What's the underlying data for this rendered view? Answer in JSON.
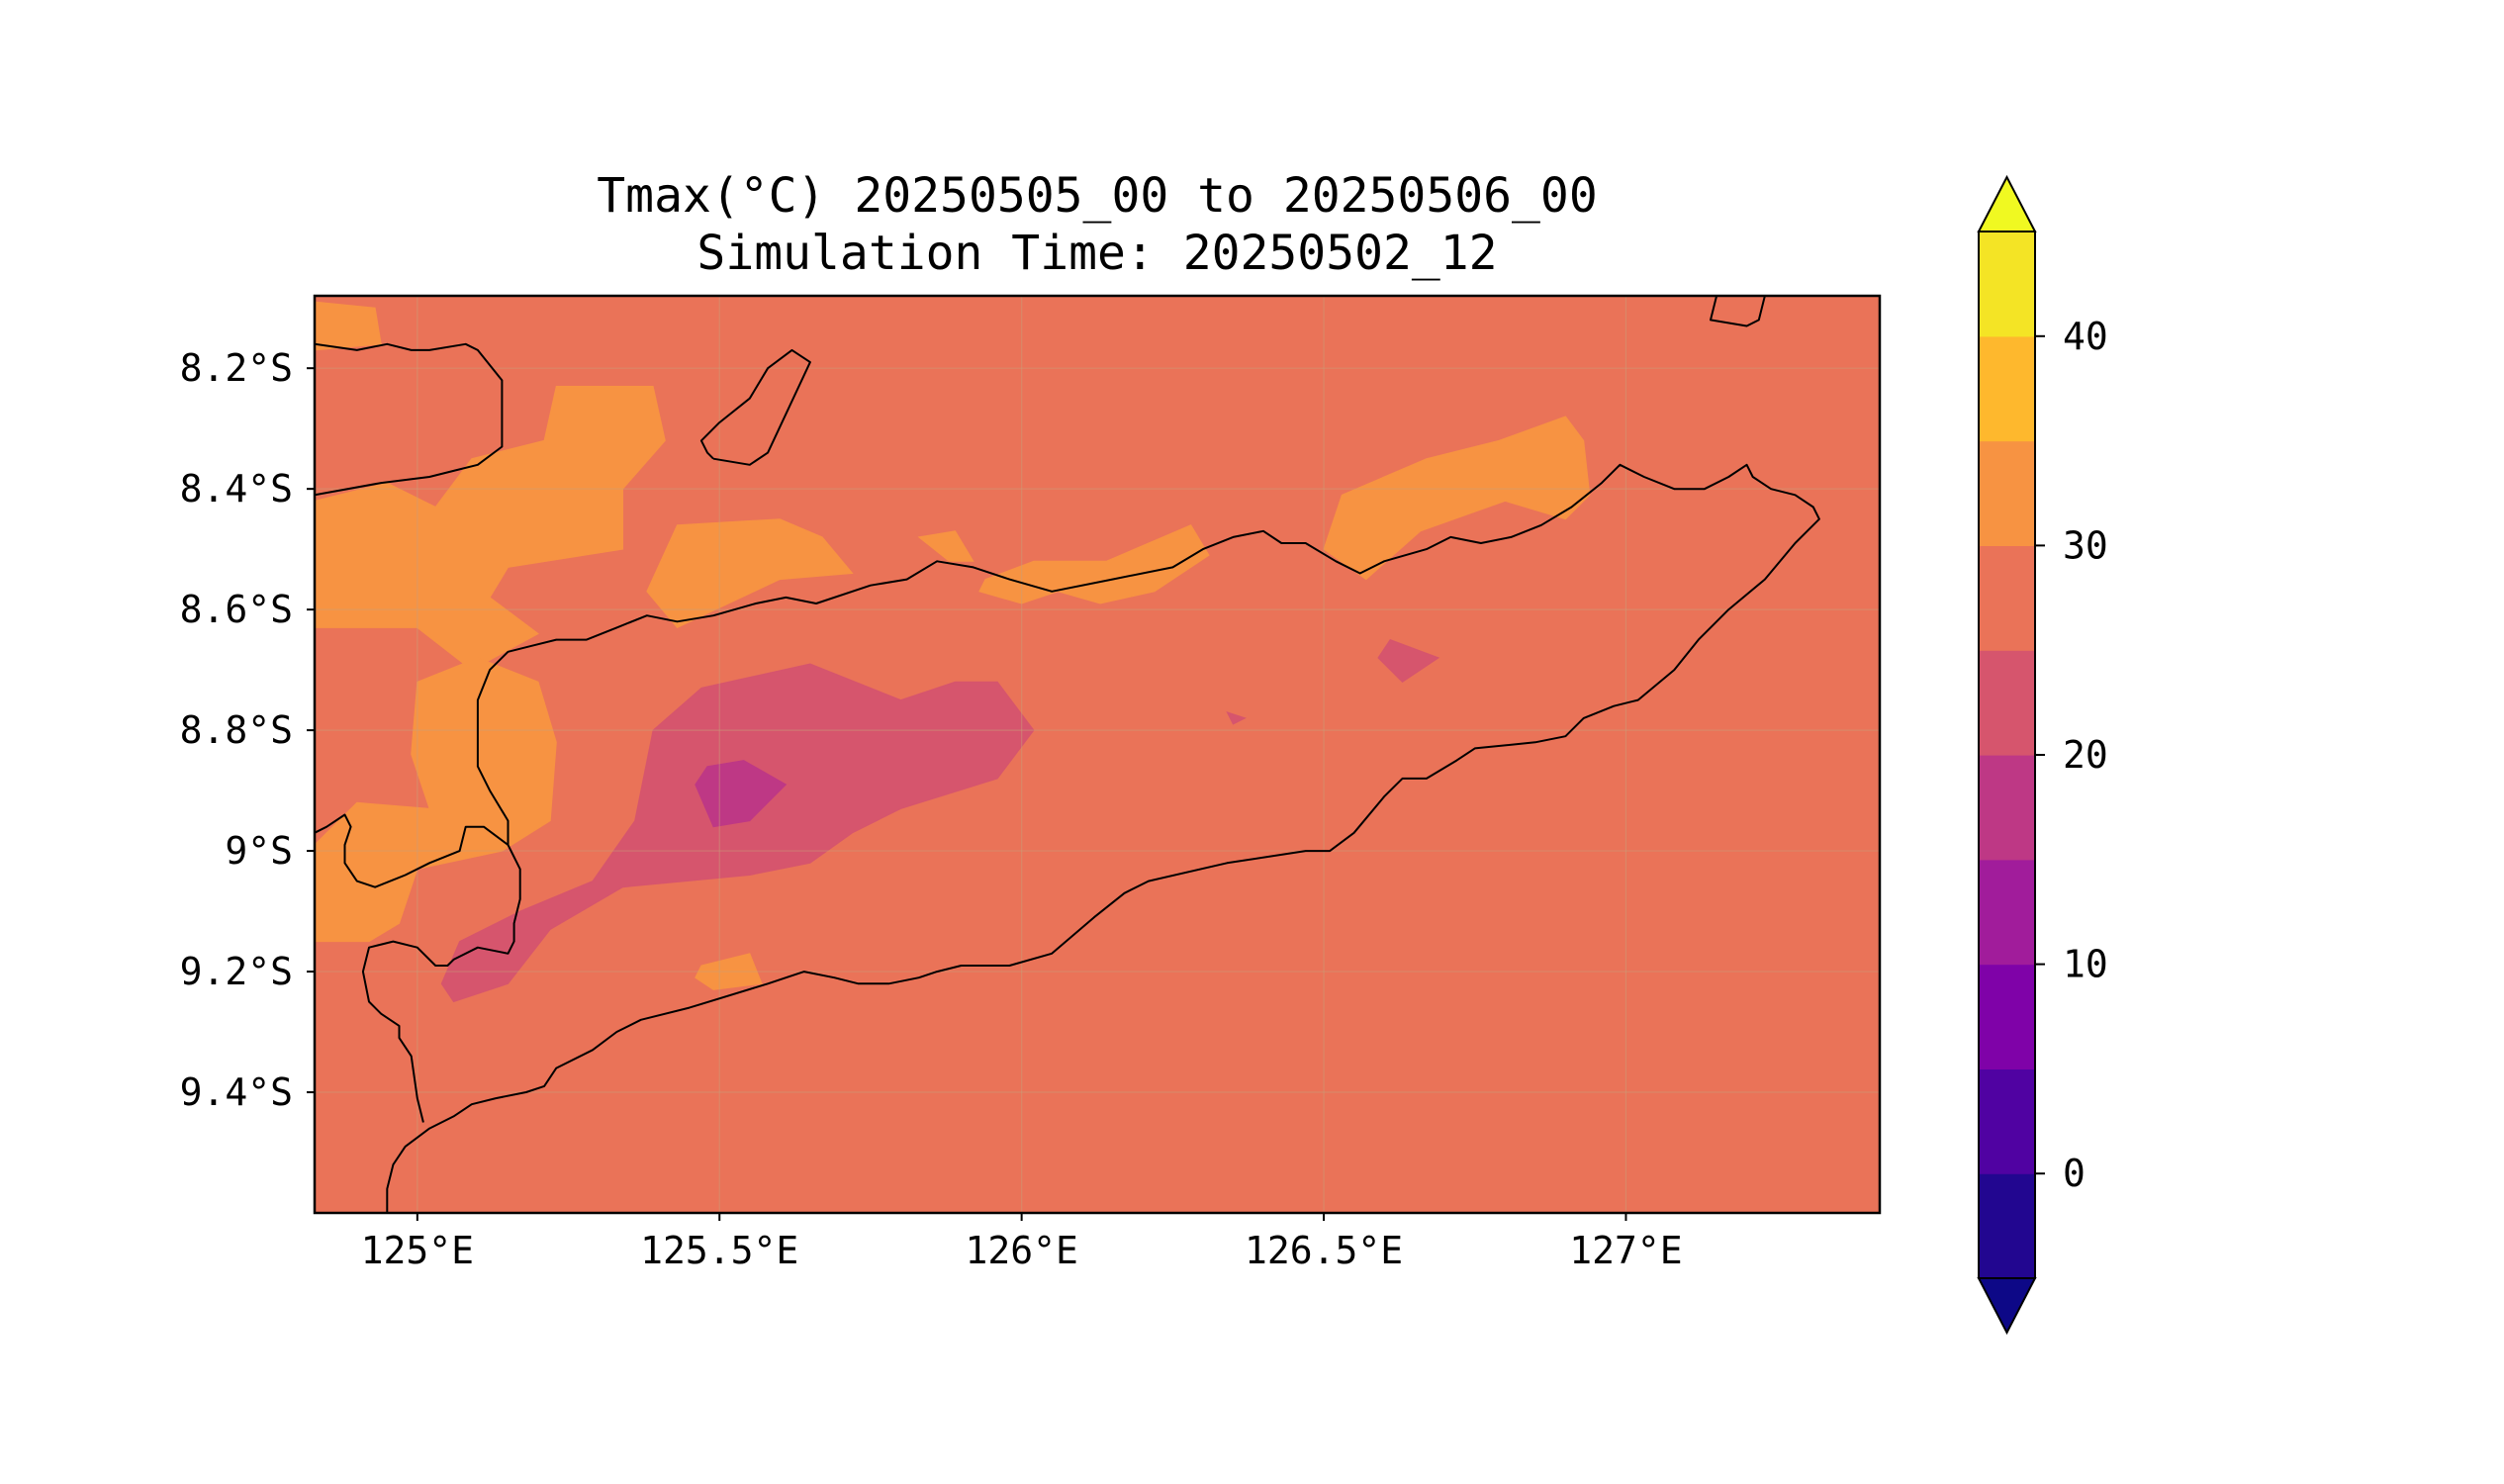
{
  "chart_data": {
    "type": "heatmap",
    "title": "Tmax(°C) 20250505_00 to 20250506_00",
    "subtitle": "Simulation Time: 20250502_12",
    "xlabel": "",
    "ylabel": "",
    "xlim": [
      124.83,
      127.42
    ],
    "ylim": [
      -9.6,
      -8.08
    ],
    "x_ticks": [
      {
        "value": 125.0,
        "label": "125°E"
      },
      {
        "value": 125.5,
        "label": "125.5°E"
      },
      {
        "value": 126.0,
        "label": "126°E"
      },
      {
        "value": 126.5,
        "label": "126.5°E"
      },
      {
        "value": 127.0,
        "label": "127°E"
      }
    ],
    "y_ticks": [
      {
        "value": -8.2,
        "label": "8.2°S"
      },
      {
        "value": -8.4,
        "label": "8.4°S"
      },
      {
        "value": -8.6,
        "label": "8.6°S"
      },
      {
        "value": -8.8,
        "label": "8.8°S"
      },
      {
        "value": -9.0,
        "label": "9°S"
      },
      {
        "value": -9.2,
        "label": "9.2°S"
      },
      {
        "value": -9.4,
        "label": "9.4°S"
      }
    ],
    "grid": true,
    "background_level": [
      25,
      30
    ],
    "regions": [
      {
        "level": [
          30,
          35
        ],
        "points": [
          [
            124.83,
            -8.09
          ],
          [
            124.93,
            -8.1
          ],
          [
            124.94,
            -8.16
          ],
          [
            124.83,
            -8.17
          ]
        ]
      },
      {
        "level": [
          30,
          35
        ],
        "points": [
          [
            125.23,
            -8.23
          ],
          [
            125.39,
            -8.23
          ],
          [
            125.41,
            -8.32
          ],
          [
            125.34,
            -8.4
          ],
          [
            125.34,
            -8.5
          ],
          [
            125.15,
            -8.53
          ],
          [
            125.12,
            -8.58
          ],
          [
            125.2,
            -8.64
          ],
          [
            125.09,
            -8.7
          ],
          [
            125.0,
            -8.63
          ],
          [
            124.83,
            -8.63
          ],
          [
            124.83,
            -8.42
          ],
          [
            124.95,
            -8.39
          ],
          [
            125.03,
            -8.43
          ],
          [
            125.09,
            -8.35
          ],
          [
            125.21,
            -8.32
          ]
        ]
      },
      {
        "level": [
          30,
          35
        ],
        "points": [
          [
            125.0,
            -8.72
          ],
          [
            125.1,
            -8.68
          ],
          [
            125.2,
            -8.72
          ],
          [
            125.23,
            -8.82
          ],
          [
            125.22,
            -8.95
          ],
          [
            125.14,
            -9.0
          ],
          [
            125.0,
            -9.03
          ],
          [
            124.97,
            -9.12
          ],
          [
            124.92,
            -9.15
          ],
          [
            124.83,
            -9.15
          ],
          [
            124.83,
            -8.99
          ],
          [
            124.9,
            -8.92
          ],
          [
            125.02,
            -8.93
          ],
          [
            124.99,
            -8.84
          ]
        ]
      },
      {
        "level": [
          30,
          35
        ],
        "points": [
          [
            125.43,
            -8.46
          ],
          [
            125.6,
            -8.45
          ],
          [
            125.67,
            -8.48
          ],
          [
            125.72,
            -8.54
          ],
          [
            125.6,
            -8.55
          ],
          [
            125.43,
            -8.63
          ],
          [
            125.38,
            -8.57
          ]
        ]
      },
      {
        "level": [
          30,
          35
        ],
        "points": [
          [
            125.83,
            -8.48
          ],
          [
            125.89,
            -8.47
          ],
          [
            125.92,
            -8.52
          ],
          [
            125.88,
            -8.52
          ]
        ]
      },
      {
        "level": [
          30,
          35
        ],
        "points": [
          [
            125.94,
            -8.55
          ],
          [
            126.02,
            -8.52
          ],
          [
            126.14,
            -8.52
          ],
          [
            126.28,
            -8.46
          ],
          [
            126.31,
            -8.51
          ],
          [
            126.22,
            -8.57
          ],
          [
            126.13,
            -8.59
          ],
          [
            126.06,
            -8.57
          ],
          [
            126.0,
            -8.59
          ],
          [
            125.93,
            -8.57
          ]
        ]
      },
      {
        "level": [
          30,
          35
        ],
        "points": [
          [
            126.53,
            -8.41
          ],
          [
            126.67,
            -8.35
          ],
          [
            126.79,
            -8.32
          ],
          [
            126.9,
            -8.28
          ],
          [
            126.93,
            -8.32
          ],
          [
            126.94,
            -8.41
          ],
          [
            126.9,
            -8.45
          ],
          [
            126.8,
            -8.42
          ],
          [
            126.66,
            -8.47
          ],
          [
            126.57,
            -8.55
          ],
          [
            126.5,
            -8.5
          ]
        ]
      },
      {
        "level": [
          30,
          35
        ],
        "points": [
          [
            125.47,
            -9.19
          ],
          [
            125.55,
            -9.17
          ],
          [
            125.57,
            -9.22
          ],
          [
            125.49,
            -9.23
          ],
          [
            125.46,
            -9.21
          ]
        ]
      },
      {
        "level": [
          20,
          25
        ],
        "points": [
          [
            125.47,
            -8.73
          ],
          [
            125.65,
            -8.69
          ],
          [
            125.8,
            -8.75
          ],
          [
            125.89,
            -8.72
          ],
          [
            125.96,
            -8.72
          ],
          [
            126.02,
            -8.8
          ],
          [
            125.96,
            -8.88
          ],
          [
            125.8,
            -8.93
          ],
          [
            125.72,
            -8.97
          ],
          [
            125.65,
            -9.02
          ],
          [
            125.55,
            -9.04
          ],
          [
            125.34,
            -9.06
          ],
          [
            125.22,
            -9.13
          ],
          [
            125.15,
            -9.22
          ],
          [
            125.06,
            -9.25
          ],
          [
            125.04,
            -9.22
          ],
          [
            125.07,
            -9.15
          ],
          [
            125.17,
            -9.1
          ],
          [
            125.29,
            -9.05
          ],
          [
            125.36,
            -8.95
          ],
          [
            125.39,
            -8.8
          ]
        ]
      },
      {
        "level": [
          20,
          25
        ],
        "points": [
          [
            126.61,
            -8.65
          ],
          [
            126.69,
            -8.68
          ],
          [
            126.63,
            -8.72
          ],
          [
            126.59,
            -8.68
          ]
        ]
      },
      {
        "level": [
          20,
          25
        ],
        "points": [
          [
            126.34,
            -8.77
          ],
          [
            126.37,
            -8.78
          ],
          [
            126.35,
            -8.79
          ]
        ]
      },
      {
        "level": [
          15,
          20
        ],
        "points": [
          [
            125.48,
            -8.86
          ],
          [
            125.54,
            -8.85
          ],
          [
            125.61,
            -8.89
          ],
          [
            125.55,
            -8.95
          ],
          [
            125.49,
            -8.96
          ],
          [
            125.46,
            -8.89
          ]
        ]
      }
    ],
    "coastlines": [
      [
        [
          124.83,
          -8.16
        ],
        [
          124.9,
          -8.17
        ],
        [
          124.95,
          -8.16
        ],
        [
          124.99,
          -8.17
        ],
        [
          125.02,
          -8.17
        ],
        [
          125.08,
          -8.16
        ],
        [
          125.1,
          -8.17
        ],
        [
          125.14,
          -8.22
        ],
        [
          125.14,
          -8.33
        ],
        [
          125.1,
          -8.36
        ],
        [
          125.06,
          -8.37
        ],
        [
          125.02,
          -8.38
        ],
        [
          124.94,
          -8.39
        ],
        [
          124.83,
          -8.41
        ]
      ],
      [
        [
          125.49,
          -8.35
        ],
        [
          125.55,
          -8.36
        ],
        [
          125.58,
          -8.34
        ],
        [
          125.65,
          -8.19
        ],
        [
          125.62,
          -8.17
        ],
        [
          125.58,
          -8.2
        ],
        [
          125.55,
          -8.25
        ],
        [
          125.5,
          -8.29
        ],
        [
          125.47,
          -8.32
        ],
        [
          125.48,
          -8.34
        ],
        [
          125.49,
          -8.35
        ]
      ],
      [
        [
          125.15,
          -8.99
        ],
        [
          125.15,
          -8.95
        ],
        [
          125.12,
          -8.9
        ],
        [
          125.1,
          -8.86
        ],
        [
          125.1,
          -8.75
        ],
        [
          125.12,
          -8.7
        ],
        [
          125.15,
          -8.67
        ],
        [
          125.19,
          -8.66
        ],
        [
          125.23,
          -8.65
        ],
        [
          125.28,
          -8.65
        ],
        [
          125.33,
          -8.63
        ],
        [
          125.38,
          -8.61
        ],
        [
          125.43,
          -8.62
        ],
        [
          125.49,
          -8.61
        ],
        [
          125.56,
          -8.59
        ],
        [
          125.61,
          -8.58
        ],
        [
          125.66,
          -8.59
        ],
        [
          125.75,
          -8.56
        ],
        [
          125.81,
          -8.55
        ],
        [
          125.86,
          -8.52
        ],
        [
          125.92,
          -8.53
        ],
        [
          125.98,
          -8.55
        ],
        [
          126.05,
          -8.57
        ],
        [
          126.15,
          -8.55
        ],
        [
          126.25,
          -8.53
        ],
        [
          126.3,
          -8.5
        ],
        [
          126.35,
          -8.48
        ],
        [
          126.4,
          -8.47
        ],
        [
          126.43,
          -8.49
        ],
        [
          126.47,
          -8.49
        ],
        [
          126.52,
          -8.52
        ],
        [
          126.56,
          -8.54
        ],
        [
          126.6,
          -8.52
        ],
        [
          126.67,
          -8.5
        ],
        [
          126.71,
          -8.48
        ],
        [
          126.76,
          -8.49
        ],
        [
          126.81,
          -8.48
        ],
        [
          126.86,
          -8.46
        ],
        [
          126.91,
          -8.43
        ],
        [
          126.96,
          -8.39
        ],
        [
          126.99,
          -8.36
        ],
        [
          127.03,
          -8.38
        ],
        [
          127.08,
          -8.4
        ],
        [
          127.13,
          -8.4
        ],
        [
          127.17,
          -8.38
        ],
        [
          127.2,
          -8.36
        ],
        [
          127.21,
          -8.38
        ],
        [
          127.24,
          -8.4
        ],
        [
          127.28,
          -8.41
        ],
        [
          127.31,
          -8.43
        ],
        [
          127.32,
          -8.45
        ],
        [
          127.28,
          -8.49
        ],
        [
          127.23,
          -8.55
        ],
        [
          127.17,
          -8.6
        ],
        [
          127.12,
          -8.65
        ],
        [
          127.08,
          -8.7
        ],
        [
          127.02,
          -8.75
        ],
        [
          126.98,
          -8.76
        ],
        [
          126.93,
          -8.78
        ],
        [
          126.9,
          -8.81
        ],
        [
          126.85,
          -8.82
        ],
        [
          126.75,
          -8.83
        ],
        [
          126.72,
          -8.85
        ],
        [
          126.67,
          -8.88
        ],
        [
          126.63,
          -8.88
        ],
        [
          126.6,
          -8.91
        ],
        [
          126.55,
          -8.97
        ],
        [
          126.51,
          -9.0
        ],
        [
          126.47,
          -9.0
        ],
        [
          126.34,
          -9.02
        ],
        [
          126.21,
          -9.05
        ],
        [
          126.17,
          -9.07
        ],
        [
          126.12,
          -9.11
        ],
        [
          126.05,
          -9.17
        ],
        [
          125.98,
          -9.19
        ],
        [
          125.9,
          -9.19
        ],
        [
          125.86,
          -9.2
        ],
        [
          125.83,
          -9.21
        ],
        [
          125.78,
          -9.22
        ],
        [
          125.73,
          -9.22
        ],
        [
          125.69,
          -9.21
        ],
        [
          125.64,
          -9.2
        ],
        [
          125.61,
          -9.21
        ],
        [
          125.58,
          -9.22
        ],
        [
          125.45,
          -9.26
        ],
        [
          125.37,
          -9.28
        ],
        [
          125.33,
          -9.3
        ],
        [
          125.29,
          -9.33
        ],
        [
          125.23,
          -9.36
        ],
        [
          125.21,
          -9.39
        ],
        [
          125.18,
          -9.4
        ],
        [
          125.13,
          -9.41
        ],
        [
          125.09,
          -9.42
        ],
        [
          125.06,
          -9.44
        ],
        [
          125.02,
          -9.46
        ],
        [
          124.98,
          -9.49
        ],
        [
          124.96,
          -9.52
        ],
        [
          124.95,
          -9.56
        ],
        [
          124.95,
          -9.6
        ]
      ],
      [
        [
          125.15,
          -8.99
        ],
        [
          125.11,
          -8.96
        ],
        [
          125.08,
          -8.96
        ],
        [
          125.07,
          -9.0
        ],
        [
          125.02,
          -9.02
        ],
        [
          124.98,
          -9.04
        ],
        [
          124.93,
          -9.06
        ],
        [
          124.9,
          -9.05
        ],
        [
          124.88,
          -9.02
        ],
        [
          124.88,
          -8.99
        ],
        [
          124.89,
          -8.96
        ],
        [
          124.88,
          -8.94
        ],
        [
          124.85,
          -8.96
        ],
        [
          124.83,
          -8.97
        ]
      ],
      [
        [
          125.15,
          -8.99
        ],
        [
          125.17,
          -9.03
        ],
        [
          125.17,
          -9.08
        ],
        [
          125.16,
          -9.12
        ],
        [
          125.16,
          -9.15
        ],
        [
          125.15,
          -9.17
        ],
        [
          125.1,
          -9.16
        ],
        [
          125.06,
          -9.18
        ],
        [
          125.05,
          -9.19
        ],
        [
          125.03,
          -9.19
        ],
        [
          125.0,
          -9.16
        ],
        [
          124.96,
          -9.15
        ],
        [
          124.92,
          -9.16
        ],
        [
          124.91,
          -9.2
        ],
        [
          124.92,
          -9.25
        ],
        [
          124.94,
          -9.27
        ],
        [
          124.97,
          -9.29
        ],
        [
          124.97,
          -9.31
        ],
        [
          124.99,
          -9.34
        ],
        [
          125.0,
          -9.41
        ],
        [
          125.01,
          -9.45
        ]
      ],
      [
        [
          127.15,
          -8.08
        ],
        [
          127.14,
          -8.12
        ],
        [
          127.2,
          -8.13
        ],
        [
          127.22,
          -8.12
        ],
        [
          127.23,
          -8.08
        ]
      ]
    ],
    "colorbar": {
      "levels": [
        -5,
        0,
        5,
        10,
        15,
        20,
        25,
        30,
        35,
        40,
        45
      ],
      "colors": [
        "#220690",
        "#5002a2",
        "#7f02a8",
        "#a11c9b",
        "#be3885",
        "#d6556d",
        "#ea7358",
        "#f79342",
        "#feb82d",
        "#f4e425"
      ],
      "under_color": "#0d0887",
      "over_color": "#f0f921",
      "ticks": [
        0,
        10,
        20,
        30,
        40
      ],
      "tick_labels": [
        "0",
        "10",
        "20",
        "30",
        "40"
      ],
      "extend": "both"
    }
  }
}
